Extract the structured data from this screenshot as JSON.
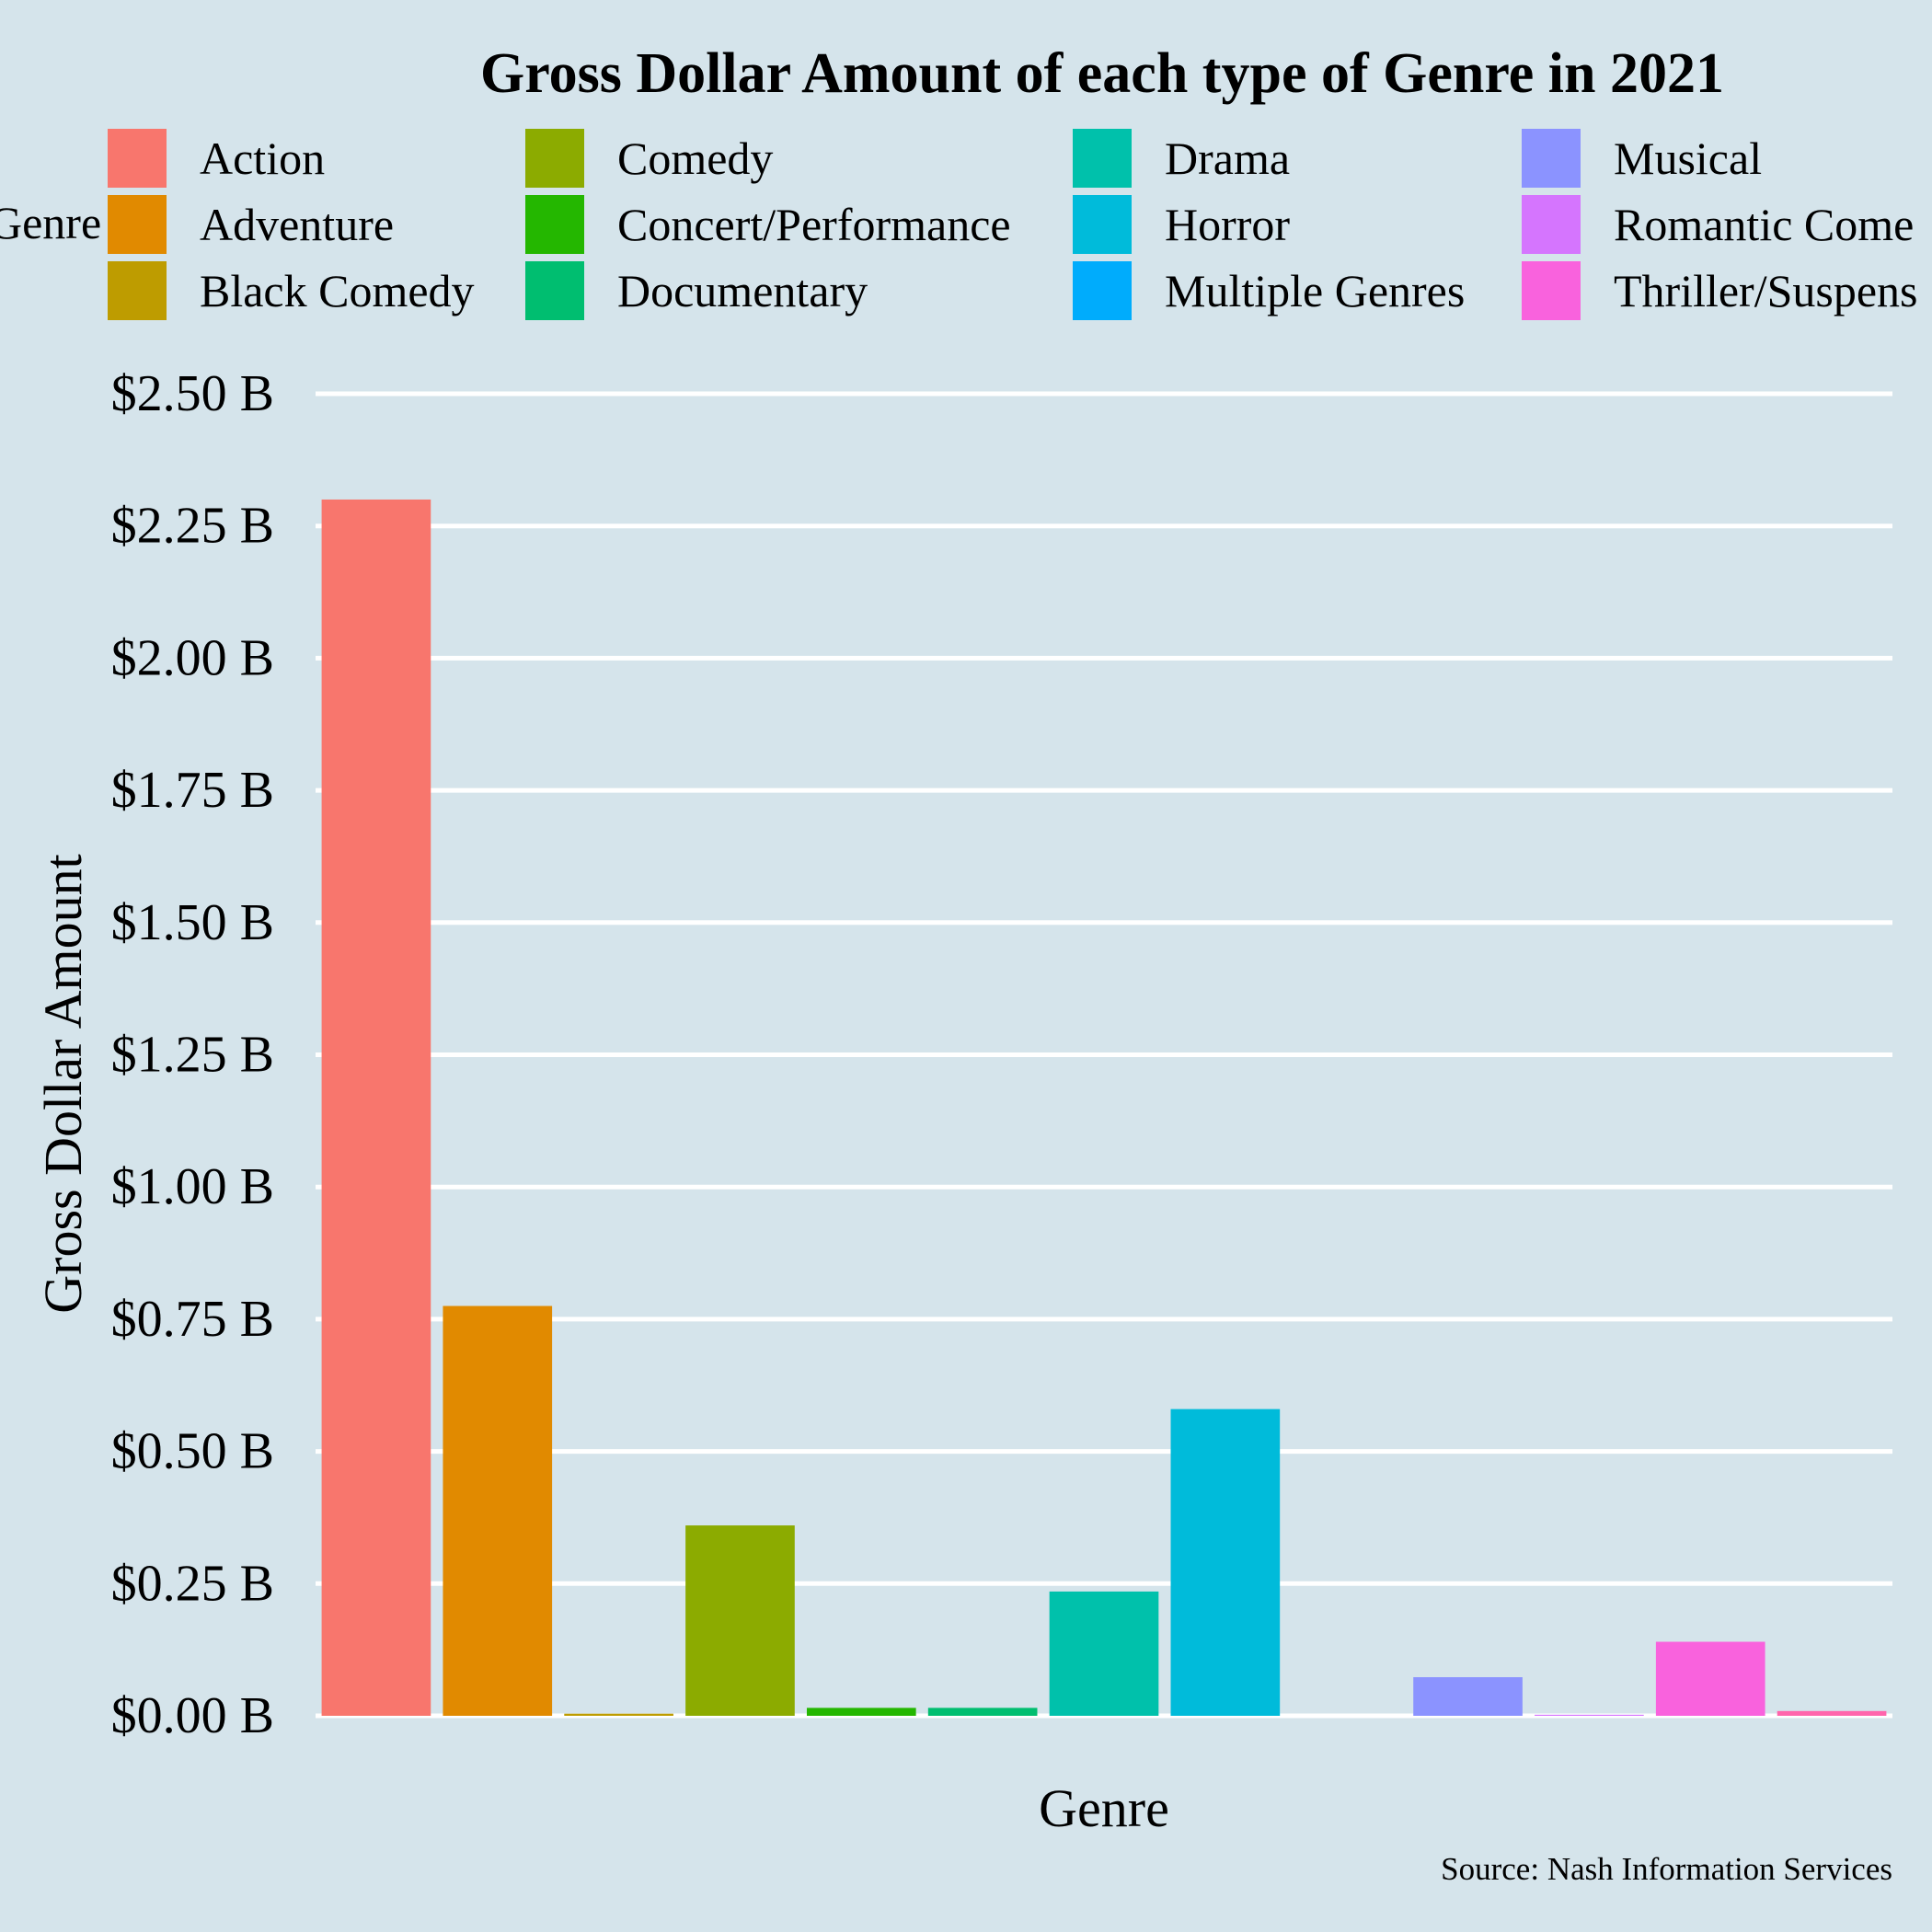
{
  "colors": {
    "background": "#d5e4eb",
    "grid": "#ffffff",
    "text": "#000000"
  },
  "chart_data": {
    "type": "bar",
    "title": "Gross Dollar Amount of each type of Genre in 2021",
    "xlabel": "Genre",
    "ylabel": "Gross Dollar Amount",
    "caption": "Source: Nash Information Services",
    "legend_title": "Genre",
    "legend_position": "top",
    "grid": "horizontal",
    "x_ticks_shown": false,
    "ylim": [
      0,
      2.5
    ],
    "y_ticks": [
      {
        "value": 0,
        "label": "$0.00 B"
      },
      {
        "value": 0.25,
        "label": "$0.25 B"
      },
      {
        "value": 0.5,
        "label": "$0.50 B"
      },
      {
        "value": 0.75,
        "label": "$0.75 B"
      },
      {
        "value": 1.0,
        "label": "$1.00 B"
      },
      {
        "value": 1.25,
        "label": "$1.25 B"
      },
      {
        "value": 1.5,
        "label": "$1.50 B"
      },
      {
        "value": 1.75,
        "label": "$1.75 B"
      },
      {
        "value": 2.0,
        "label": "$2.00 B"
      },
      {
        "value": 2.25,
        "label": "$2.25 B"
      },
      {
        "value": 2.5,
        "label": "$2.50 B"
      }
    ],
    "units": "billions of US dollars",
    "categories": [
      "Action",
      "Adventure",
      "Black Comedy",
      "Comedy",
      "Concert/Performance",
      "Documentary",
      "Drama",
      "Horror",
      "Multiple Genres",
      "Musical",
      "Romantic Comedy",
      "Thriller/Suspense",
      ""
    ],
    "legend_labels": [
      "Action",
      "Adventure",
      "Black Comedy",
      "Comedy",
      "Concert/Performance",
      "Documentary",
      "Drama",
      "Horror",
      "Multiple Genres",
      "Musical",
      "Romantic Come",
      "Thriller/Suspens"
    ],
    "values": [
      2.3,
      0.775,
      0.004,
      0.36,
      0.015,
      0.015,
      0.235,
      0.58,
      0.0,
      0.073,
      0.002,
      0.14,
      0.009
    ],
    "bar_colors": [
      "#F8766D",
      "#E18A00",
      "#BE9C00",
      "#8CAB00",
      "#24B700",
      "#00BE70",
      "#00C1AB",
      "#00BBDA",
      "#00ACFC",
      "#8B93FF",
      "#D575FE",
      "#F962DD",
      "#FF65AC"
    ]
  }
}
